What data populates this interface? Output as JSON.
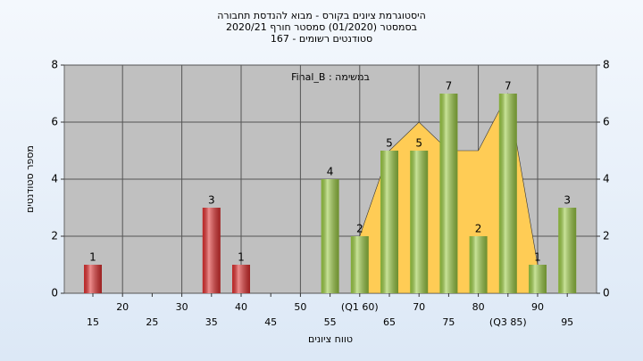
{
  "chart_data": {
    "type": "bar",
    "title": [
      "היסטוגרמת ציונים בקורס - מבוא להנדסת תחבורה",
      "בסמסטר  (01/2020)  סמסטר חורף  2020/21",
      "סטודנטים רשומים - 167"
    ],
    "annotation": "Final_B : במשימה",
    "x_label": "טווח ציונים",
    "y_label": "מספר סטודנטים",
    "categories": [
      "15",
      "20",
      "25",
      "30",
      "35",
      "40",
      "45",
      "50",
      "55",
      {
        "value": "60",
        "label": "(Q1 60)"
      },
      "65",
      "70",
      "75",
      "80",
      {
        "value": "85",
        "label": "(Q3 85)"
      },
      "90",
      "95"
    ],
    "values": [
      1,
      0,
      0,
      0,
      3,
      1,
      0,
      0,
      4,
      2,
      5,
      5,
      7,
      2,
      7,
      1,
      3
    ],
    "value_labels": [
      "1",
      null,
      null,
      null,
      "3",
      "1",
      null,
      null,
      "4",
      "2",
      "5",
      "5",
      "7",
      "2",
      "7",
      "1",
      "3"
    ],
    "colors": [
      "#e03030",
      "#e03030",
      "#e03030",
      "#e03030",
      "#e03030",
      "#e03030",
      "#e03030",
      "#e03030",
      "#9ccc44",
      "#9ccc44",
      "#9ccc44",
      "#9ccc44",
      "#9ccc44",
      "#9ccc44",
      "#9ccc44",
      "#9ccc44",
      "#9ccc44"
    ],
    "area": {
      "color": "#ffcc55",
      "x_index": [
        9,
        10,
        11,
        12,
        13,
        14,
        15
      ],
      "values": [
        2,
        5,
        6,
        5,
        5,
        7,
        1
      ]
    },
    "ylim": [
      0,
      8
    ],
    "yticks": [
      0,
      2,
      4,
      6,
      8
    ],
    "y2lim": [
      0,
      8
    ],
    "y2ticks": [
      0,
      2,
      4,
      6,
      8
    ],
    "grid": true
  }
}
